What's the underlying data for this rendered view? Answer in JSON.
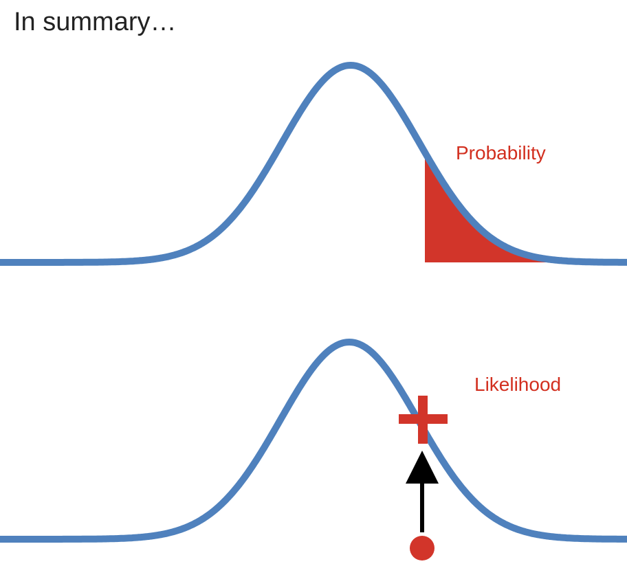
{
  "title": "In summary…",
  "labels": {
    "probability": "Probability",
    "likelihood": "Likelihood"
  }
}
